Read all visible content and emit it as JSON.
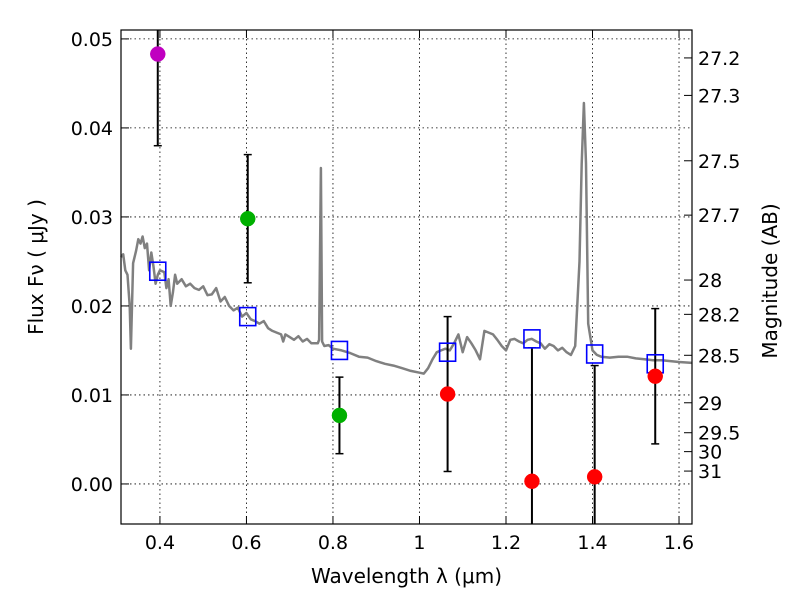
{
  "chart_data": {
    "type": "scatter",
    "xlabel": "Wavelength  λ (μm)",
    "ylabel": "Flux  Fν  ( μJy )",
    "ylabel_right": "Magnitude (AB)",
    "xlim": [
      0.31,
      1.63
    ],
    "ylim": [
      -0.0045,
      0.051
    ],
    "x_ticks": [
      0.4,
      0.6,
      0.8,
      1.0,
      1.2,
      1.4,
      1.6
    ],
    "x_tick_labels": [
      "0.4",
      "0.6",
      "0.8",
      "1",
      "1.2",
      "1.4",
      "1.6"
    ],
    "y_ticks": [
      0.0,
      0.01,
      0.02,
      0.03,
      0.04,
      0.05
    ],
    "y_tick_labels": [
      "0.00",
      "0.01",
      "0.02",
      "0.03",
      "0.04",
      "0.05"
    ],
    "right_ticks": [
      {
        "label": "27.2",
        "mag": 27.2
      },
      {
        "label": "27.3",
        "mag": 27.3
      },
      {
        "label": "27.5",
        "mag": 27.5
      },
      {
        "label": "27.7",
        "mag": 27.7
      },
      {
        "label": "28",
        "mag": 28.0
      },
      {
        "label": "28.2",
        "mag": 28.2
      },
      {
        "label": "28.5",
        "mag": 28.5
      },
      {
        "label": "29",
        "mag": 29.0
      },
      {
        "label": "29.5",
        "mag": 29.5
      },
      {
        "label": "30",
        "mag": 30.0
      },
      {
        "label": "31",
        "mag": 31.0
      }
    ],
    "grid": true,
    "colors": {
      "model": "#808080",
      "model_photometry": "#0000ff",
      "errorbar": "#000000",
      "purple": "#c000c0",
      "green": "#00b000",
      "red": "#ff0000"
    },
    "observed": [
      {
        "x": 0.395,
        "y": 0.0483,
        "err": 0.0103,
        "color": "purple"
      },
      {
        "x": 0.603,
        "y": 0.0298,
        "err": 0.0072,
        "color": "green"
      },
      {
        "x": 0.815,
        "y": 0.0077,
        "err": 0.0043,
        "color": "green"
      },
      {
        "x": 1.065,
        "y": 0.0101,
        "err": 0.0087,
        "color": "red"
      },
      {
        "x": 1.26,
        "y": 0.0003,
        "err": 0.015,
        "color": "red"
      },
      {
        "x": 1.405,
        "y": 0.0008,
        "err": 0.0125,
        "color": "red"
      },
      {
        "x": 1.545,
        "y": 0.0121,
        "err": 0.0076,
        "color": "red"
      }
    ],
    "model_photometry": [
      {
        "x": 0.395,
        "y": 0.0239
      },
      {
        "x": 0.603,
        "y": 0.0188
      },
      {
        "x": 0.815,
        "y": 0.015
      },
      {
        "x": 1.065,
        "y": 0.0148
      },
      {
        "x": 1.26,
        "y": 0.0163
      },
      {
        "x": 1.405,
        "y": 0.0146
      },
      {
        "x": 1.545,
        "y": 0.0135
      }
    ],
    "model_spectrum": [
      [
        0.31,
        0.0255
      ],
      [
        0.315,
        0.0258
      ],
      [
        0.32,
        0.024
      ],
      [
        0.325,
        0.0235
      ],
      [
        0.33,
        0.02
      ],
      [
        0.333,
        0.0152
      ],
      [
        0.338,
        0.0248
      ],
      [
        0.345,
        0.0262
      ],
      [
        0.35,
        0.0275
      ],
      [
        0.355,
        0.027
      ],
      [
        0.36,
        0.0278
      ],
      [
        0.365,
        0.0265
      ],
      [
        0.37,
        0.027
      ],
      [
        0.375,
        0.024
      ],
      [
        0.38,
        0.026
      ],
      [
        0.385,
        0.0245
      ],
      [
        0.39,
        0.0225
      ],
      [
        0.395,
        0.0235
      ],
      [
        0.4,
        0.024
      ],
      [
        0.41,
        0.0238
      ],
      [
        0.415,
        0.022
      ],
      [
        0.42,
        0.023
      ],
      [
        0.425,
        0.02
      ],
      [
        0.43,
        0.0215
      ],
      [
        0.435,
        0.0235
      ],
      [
        0.44,
        0.0225
      ],
      [
        0.45,
        0.023
      ],
      [
        0.46,
        0.0222
      ],
      [
        0.47,
        0.0225
      ],
      [
        0.48,
        0.022
      ],
      [
        0.49,
        0.0218
      ],
      [
        0.5,
        0.0222
      ],
      [
        0.51,
        0.0212
      ],
      [
        0.52,
        0.0213
      ],
      [
        0.53,
        0.022
      ],
      [
        0.54,
        0.0205
      ],
      [
        0.55,
        0.021
      ],
      [
        0.56,
        0.02
      ],
      [
        0.57,
        0.0195
      ],
      [
        0.58,
        0.0198
      ],
      [
        0.59,
        0.0188
      ],
      [
        0.6,
        0.0192
      ],
      [
        0.61,
        0.0185
      ],
      [
        0.62,
        0.0183
      ],
      [
        0.63,
        0.018
      ],
      [
        0.64,
        0.0183
      ],
      [
        0.65,
        0.0175
      ],
      [
        0.66,
        0.0172
      ],
      [
        0.67,
        0.017
      ],
      [
        0.68,
        0.0168
      ],
      [
        0.685,
        0.016
      ],
      [
        0.69,
        0.0168
      ],
      [
        0.7,
        0.0165
      ],
      [
        0.71,
        0.0162
      ],
      [
        0.72,
        0.0166
      ],
      [
        0.73,
        0.016
      ],
      [
        0.74,
        0.0163
      ],
      [
        0.75,
        0.0158
      ],
      [
        0.765,
        0.0158
      ],
      [
        0.768,
        0.0162
      ],
      [
        0.772,
        0.0355
      ],
      [
        0.775,
        0.016
      ],
      [
        0.78,
        0.0155
      ],
      [
        0.79,
        0.0156
      ],
      [
        0.8,
        0.0152
      ],
      [
        0.82,
        0.015
      ],
      [
        0.84,
        0.0147
      ],
      [
        0.86,
        0.0143
      ],
      [
        0.88,
        0.0142
      ],
      [
        0.9,
        0.0138
      ],
      [
        0.92,
        0.0135
      ],
      [
        0.94,
        0.0133
      ],
      [
        0.96,
        0.013
      ],
      [
        0.98,
        0.0127
      ],
      [
        1.0,
        0.0125
      ],
      [
        1.01,
        0.0124
      ],
      [
        1.02,
        0.013
      ],
      [
        1.03,
        0.014
      ],
      [
        1.04,
        0.0148
      ],
      [
        1.05,
        0.015
      ],
      [
        1.06,
        0.0152
      ],
      [
        1.07,
        0.015
      ],
      [
        1.08,
        0.0158
      ],
      [
        1.09,
        0.0168
      ],
      [
        1.1,
        0.0148
      ],
      [
        1.11,
        0.0165
      ],
      [
        1.12,
        0.0158
      ],
      [
        1.13,
        0.015
      ],
      [
        1.14,
        0.014
      ],
      [
        1.15,
        0.0172
      ],
      [
        1.16,
        0.017
      ],
      [
        1.17,
        0.0168
      ],
      [
        1.18,
        0.0162
      ],
      [
        1.19,
        0.0155
      ],
      [
        1.2,
        0.015
      ],
      [
        1.21,
        0.0162
      ],
      [
        1.22,
        0.0163
      ],
      [
        1.23,
        0.016
      ],
      [
        1.24,
        0.0158
      ],
      [
        1.25,
        0.0162
      ],
      [
        1.26,
        0.0163
      ],
      [
        1.27,
        0.016
      ],
      [
        1.28,
        0.0158
      ],
      [
        1.29,
        0.0152
      ],
      [
        1.3,
        0.0157
      ],
      [
        1.31,
        0.0155
      ],
      [
        1.32,
        0.015
      ],
      [
        1.33,
        0.0153
      ],
      [
        1.34,
        0.0148
      ],
      [
        1.35,
        0.0145
      ],
      [
        1.36,
        0.0155
      ],
      [
        1.37,
        0.025
      ],
      [
        1.375,
        0.036
      ],
      [
        1.38,
        0.0428
      ],
      [
        1.385,
        0.036
      ],
      [
        1.39,
        0.018
      ],
      [
        1.4,
        0.015
      ],
      [
        1.41,
        0.0145
      ],
      [
        1.42,
        0.0143
      ],
      [
        1.44,
        0.0142
      ],
      [
        1.46,
        0.0143
      ],
      [
        1.48,
        0.0143
      ],
      [
        1.5,
        0.0141
      ],
      [
        1.52,
        0.014
      ],
      [
        1.54,
        0.0139
      ],
      [
        1.56,
        0.0139
      ],
      [
        1.58,
        0.0138
      ],
      [
        1.6,
        0.0137
      ],
      [
        1.63,
        0.0136
      ]
    ]
  }
}
